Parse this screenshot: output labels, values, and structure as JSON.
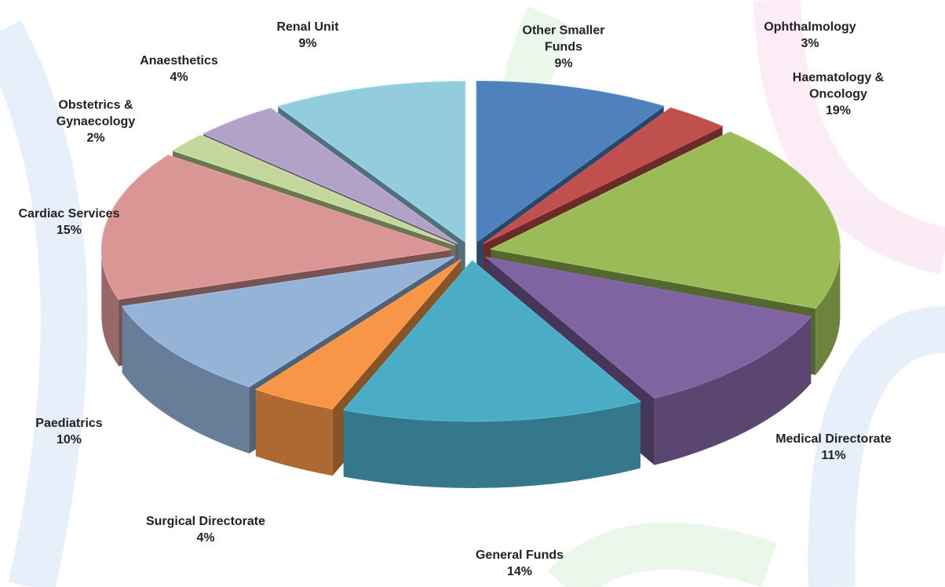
{
  "chart_data": {
    "type": "pie3d",
    "categories": [
      "Other Smaller Funds",
      "Ophthalmology",
      "Haematology & Oncology",
      "Medical Directorate",
      "General Funds",
      "Surgical Directorate",
      "Paediatrics",
      "Cardiac Services",
      "Obstetrics & Gynaecology",
      "Anaesthetics",
      "Renal Unit"
    ],
    "values": [
      9,
      3,
      19,
      11,
      14,
      4,
      10,
      15,
      2,
      4,
      9
    ],
    "value_labels": [
      "9%",
      "3%",
      "19%",
      "11%",
      "14%",
      "4%",
      "10%",
      "15%",
      "2%",
      "4%",
      "9%"
    ],
    "colors": [
      "#4f81bd",
      "#c0504d",
      "#9bbb59",
      "#8064a2",
      "#4bacc6",
      "#f79646",
      "#95b3d7",
      "#d99694",
      "#c3d69b",
      "#b3a2c7",
      "#93cddd"
    ]
  }
}
